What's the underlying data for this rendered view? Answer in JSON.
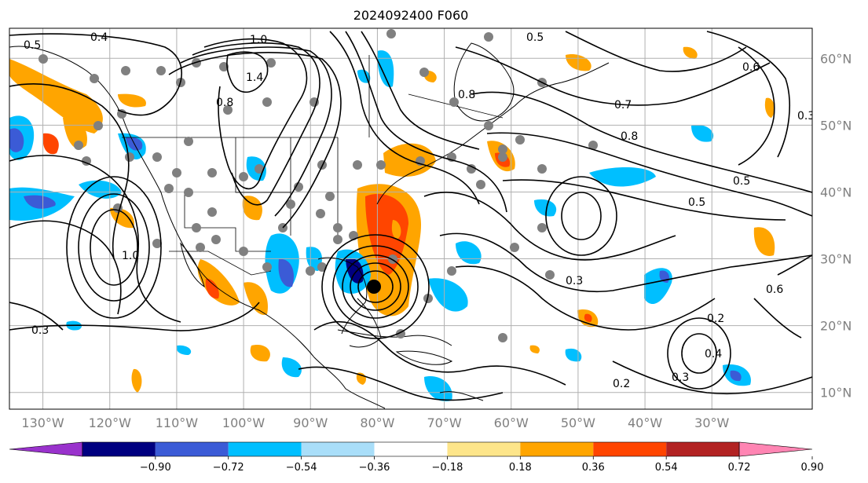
{
  "title": "2024092400 F060",
  "map": {
    "lon_range": [
      -135,
      -15
    ],
    "lat_range": [
      7.5,
      64.5
    ],
    "lat_ticks": [
      {
        "deg": 60,
        "label": "60°N"
      },
      {
        "deg": 50,
        "label": "50°N"
      },
      {
        "deg": 40,
        "label": "40°N"
      },
      {
        "deg": 30,
        "label": "30°N"
      },
      {
        "deg": 20,
        "label": "20°N"
      },
      {
        "deg": 10,
        "label": "10°N"
      }
    ],
    "lon_ticks": [
      {
        "deg": -130,
        "label": "130°W"
      },
      {
        "deg": -120,
        "label": "120°W"
      },
      {
        "deg": -110,
        "label": "110°W"
      },
      {
        "deg": -100,
        "label": "100°W"
      },
      {
        "deg": -90,
        "label": "90°W"
      },
      {
        "deg": -80,
        "label": "80°W"
      },
      {
        "deg": -70,
        "label": "70°W"
      },
      {
        "deg": -60,
        "label": "60°W"
      },
      {
        "deg": -50,
        "label": "50°W"
      },
      {
        "deg": -40,
        "label": "40°W"
      },
      {
        "deg": -30,
        "label": "30°W"
      }
    ],
    "contour_labels": [
      "0.5",
      "0.4",
      "1.0",
      "1.4",
      "0.8",
      "0.5",
      "0.7",
      "0.8",
      "0.5",
      "0.5",
      "0.3",
      "0.6",
      "0.2",
      "0.4",
      "0.3",
      "0.2",
      "0.3",
      "0.6",
      "0.3",
      "1.0",
      "0.8"
    ]
  },
  "colorbar": {
    "colors": [
      "#9932cc",
      "#000080",
      "#3b5bd6",
      "#00bfff",
      "#a9def9",
      "#ffffff",
      "#fde58a",
      "#ffa500",
      "#ff4500",
      "#b22222",
      "#ff85b3"
    ],
    "ticks": [
      "−0.90",
      "−0.72",
      "−0.54",
      "−0.36",
      "−0.18",
      "0.18",
      "0.36",
      "0.54",
      "0.72",
      "0.90"
    ]
  },
  "colors": {
    "grid": "#b0b0b0",
    "tick_label": "#808080"
  }
}
